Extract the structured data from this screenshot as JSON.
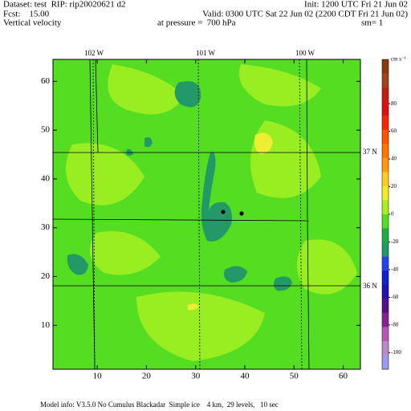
{
  "header": {
    "dataset": "Dataset: test  RIP: rip20020621 d2",
    "init": "Init: 1200 UTC Fri 21 Jun 02",
    "forecast": "Fcst:    15.00",
    "valid": "Valid: 0300 UTC Sat 22 Jun 02 (2200 CDT Fri 21 Jun 02)",
    "field": "Vertical velocity",
    "level": "at pressure =  700 hPa",
    "smoothing": "sm= 1"
  },
  "chart_data": {
    "type": "contour",
    "xlim": [
      1,
      63.5
    ],
    "ylim": [
      1,
      64.5
    ],
    "xticks": [
      10,
      20,
      30,
      40,
      50,
      60
    ],
    "yticks": [
      10,
      20,
      30,
      40,
      50,
      60
    ],
    "field_color": "#55dd22",
    "colorbar": {
      "unit": "cm s⁻¹",
      "lim": [
        -112,
        112
      ],
      "ticks": [
        80,
        60,
        40,
        20,
        0,
        -20,
        -40,
        -60,
        -80,
        -100
      ],
      "colors": [
        "#8b3a0f",
        "#a0451a",
        "#c02010",
        "#e01010",
        "#ff2200",
        "#ff5500",
        "#ff7700",
        "#ff9911",
        "#ffcc22",
        "#eeee22",
        "#aaee22",
        "#55dd22",
        "#22aa44",
        "#229966",
        "#2244ee",
        "#1122cc",
        "#2211aa",
        "#551188",
        "#882299",
        "#bb55bb",
        "#bb88cc",
        "#9999ee"
      ]
    },
    "map_labels": {
      "longitudes": [
        "102 W",
        "101 W",
        "100 W"
      ],
      "latitudes": [
        "37 N",
        "36 N"
      ]
    }
  },
  "footer": "Model info: V3.5.0 No Cumulus Blackadar  Simple ice    4 km,  29 levels,   10 sec"
}
